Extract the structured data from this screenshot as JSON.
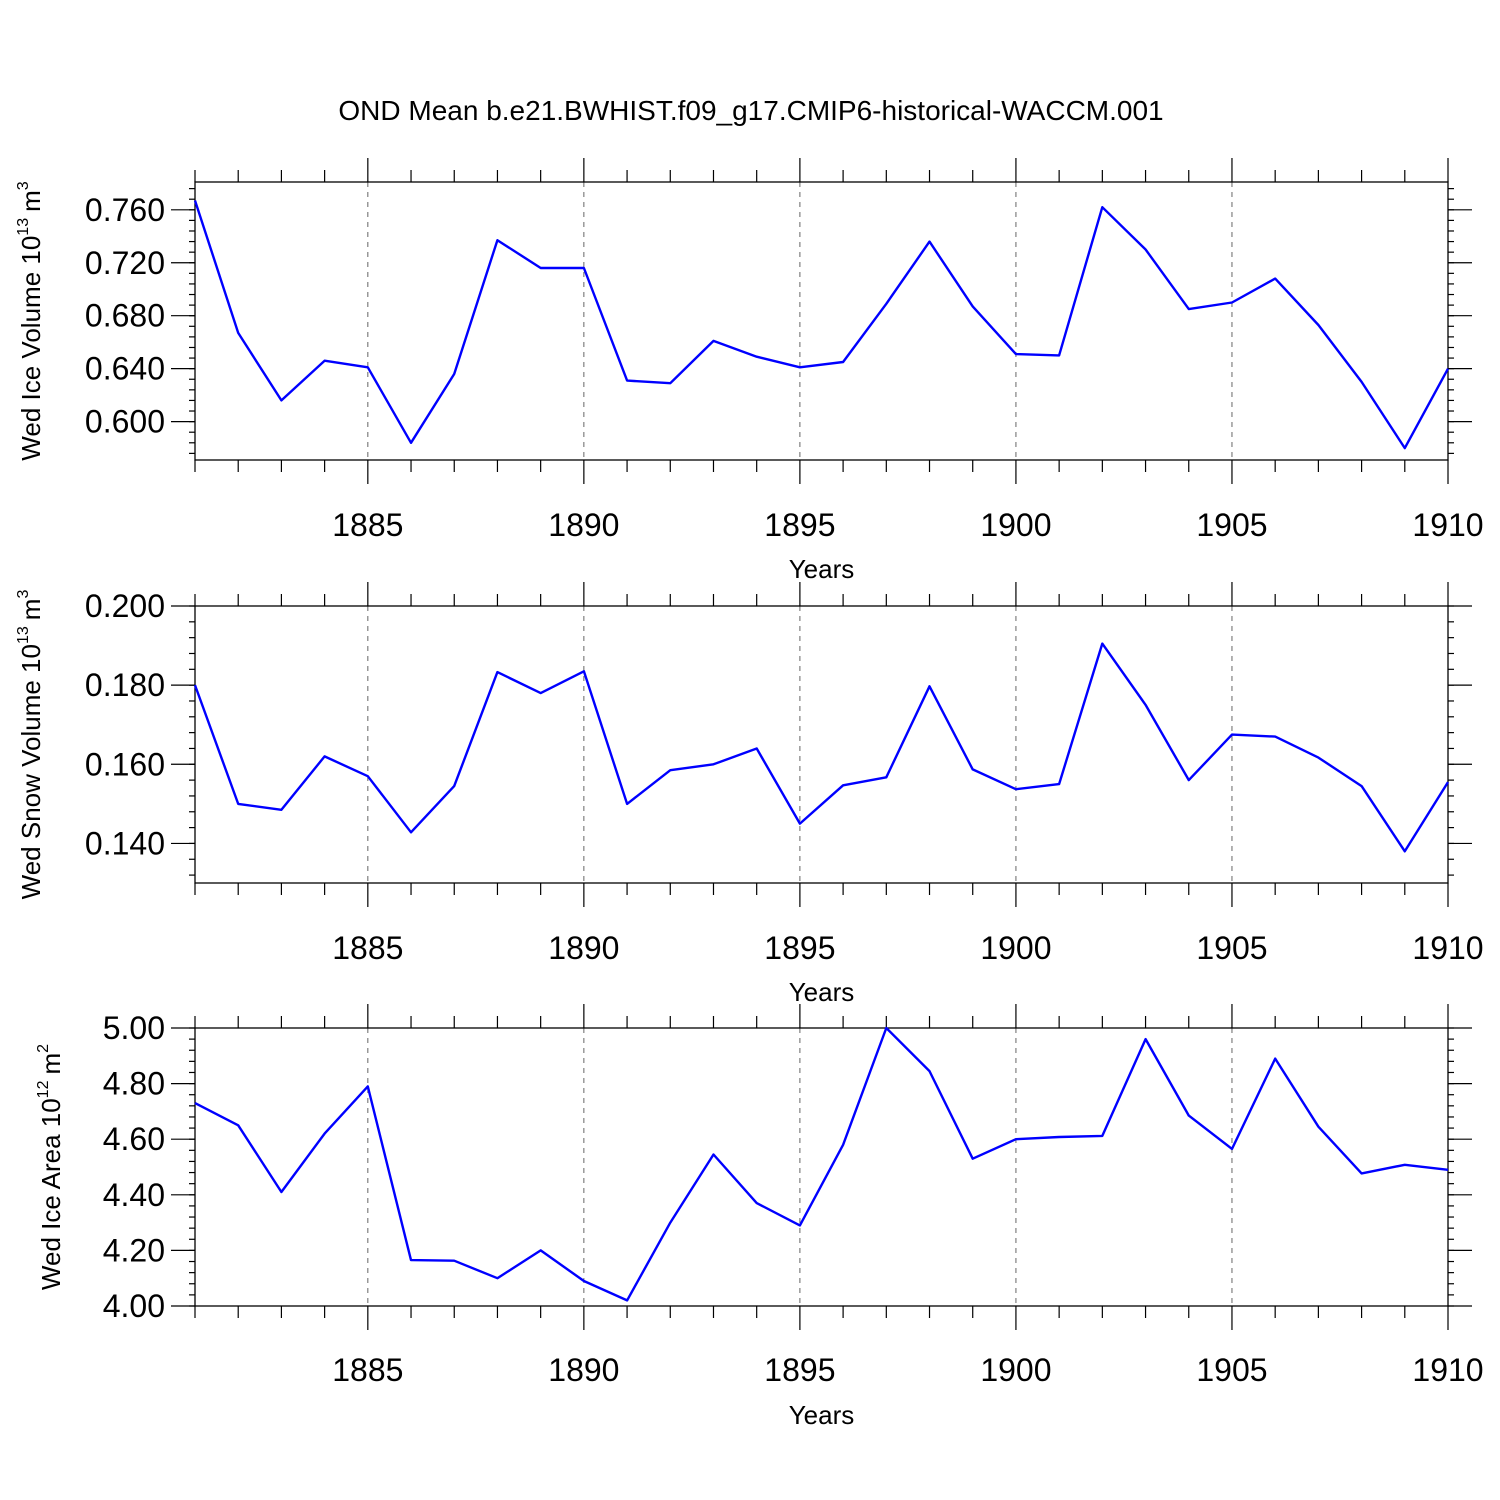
{
  "figure": {
    "title": "OND Mean b.e21.BWHIST.f09_g17.CMIP6-historical-WACCM.001",
    "line_color": "#0000ff"
  },
  "chart_data": [
    {
      "type": "line",
      "ylabel": "Wed Ice Volume 10",
      "ylabel_exp": "13",
      "ylabel_unit": "m",
      "ylabel_unit_exp": "3",
      "xlabel": "Years",
      "xlim": [
        1881,
        1910
      ],
      "ylim": [
        0.571,
        0.781
      ],
      "grid": "vertical dashed",
      "x_ticks": [
        1885,
        1890,
        1895,
        1900,
        1905,
        1910
      ],
      "y_ticks": [
        "0.600",
        "0.640",
        "0.680",
        "0.720",
        "0.760"
      ],
      "y_tick_values": [
        0.6,
        0.64,
        0.68,
        0.72,
        0.76
      ],
      "y_minor_step": 0.008,
      "x": [
        1881,
        1882,
        1883,
        1884,
        1885,
        1886,
        1887,
        1888,
        1889,
        1890,
        1891,
        1892,
        1893,
        1894,
        1895,
        1896,
        1897,
        1898,
        1899,
        1900,
        1901,
        1902,
        1903,
        1904,
        1905,
        1906,
        1907,
        1908,
        1909,
        1910
      ],
      "series": [
        {
          "values": [
            0.767,
            0.667,
            0.616,
            0.646,
            0.641,
            0.584,
            0.636,
            0.737,
            0.716,
            0.716,
            0.631,
            0.629,
            0.661,
            0.649,
            0.641,
            0.645,
            0.689,
            0.736,
            0.687,
            0.651,
            0.65,
            0.762,
            0.73,
            0.685,
            0.69,
            0.708,
            0.673,
            0.63,
            0.58,
            0.64
          ]
        }
      ]
    },
    {
      "type": "line",
      "ylabel": "Wed Snow Volume 10",
      "ylabel_exp": "13",
      "ylabel_unit": "m",
      "ylabel_unit_exp": "3",
      "xlabel": "Years",
      "xlim": [
        1881,
        1910
      ],
      "ylim": [
        0.13,
        0.2
      ],
      "grid": "vertical dashed",
      "x_ticks": [
        1885,
        1890,
        1895,
        1900,
        1905,
        1910
      ],
      "y_ticks": [
        "0.140",
        "0.160",
        "0.180",
        "0.200"
      ],
      "y_tick_values": [
        0.14,
        0.16,
        0.18,
        0.2
      ],
      "y_minor_step": 0.004,
      "x": [
        1881,
        1882,
        1883,
        1884,
        1885,
        1886,
        1887,
        1888,
        1889,
        1890,
        1891,
        1892,
        1893,
        1894,
        1895,
        1896,
        1897,
        1898,
        1899,
        1900,
        1901,
        1902,
        1903,
        1904,
        1905,
        1906,
        1907,
        1908,
        1909,
        1910
      ],
      "series": [
        {
          "values": [
            0.18,
            0.15,
            0.1485,
            0.162,
            0.157,
            0.1428,
            0.1545,
            0.1833,
            0.178,
            0.1835,
            0.15,
            0.1585,
            0.16,
            0.164,
            0.145,
            0.1547,
            0.1567,
            0.1797,
            0.1587,
            0.1537,
            0.155,
            0.1905,
            0.175,
            0.156,
            0.1675,
            0.167,
            0.1617,
            0.1545,
            0.138,
            0.1555
          ]
        }
      ]
    },
    {
      "type": "line",
      "ylabel": "Wed Ice Area 10",
      "ylabel_exp": "12",
      "ylabel_unit": "m",
      "ylabel_unit_exp": "2",
      "xlabel": "Years",
      "xlim": [
        1881,
        1910
      ],
      "ylim": [
        4.0,
        5.0
      ],
      "grid": "vertical dashed",
      "x_ticks": [
        1885,
        1890,
        1895,
        1900,
        1905,
        1910
      ],
      "y_ticks": [
        "4.00",
        "4.20",
        "4.40",
        "4.60",
        "4.80",
        "5.00"
      ],
      "y_tick_values": [
        4.0,
        4.2,
        4.4,
        4.6,
        4.8,
        5.0
      ],
      "y_minor_step": 0.04,
      "x": [
        1881,
        1882,
        1883,
        1884,
        1885,
        1886,
        1887,
        1888,
        1889,
        1890,
        1891,
        1892,
        1893,
        1894,
        1895,
        1896,
        1897,
        1898,
        1899,
        1900,
        1901,
        1902,
        1903,
        1904,
        1905,
        1906,
        1907,
        1908,
        1909,
        1910
      ],
      "series": [
        {
          "values": [
            4.73,
            4.65,
            4.41,
            4.62,
            4.79,
            4.165,
            4.163,
            4.1,
            4.2,
            4.09,
            4.02,
            4.3,
            4.545,
            4.37,
            4.29,
            4.58,
            5.0,
            4.845,
            4.53,
            4.6,
            4.608,
            4.612,
            4.96,
            4.685,
            4.565,
            4.89,
            4.645,
            4.477,
            4.508,
            4.49
          ]
        }
      ]
    }
  ]
}
